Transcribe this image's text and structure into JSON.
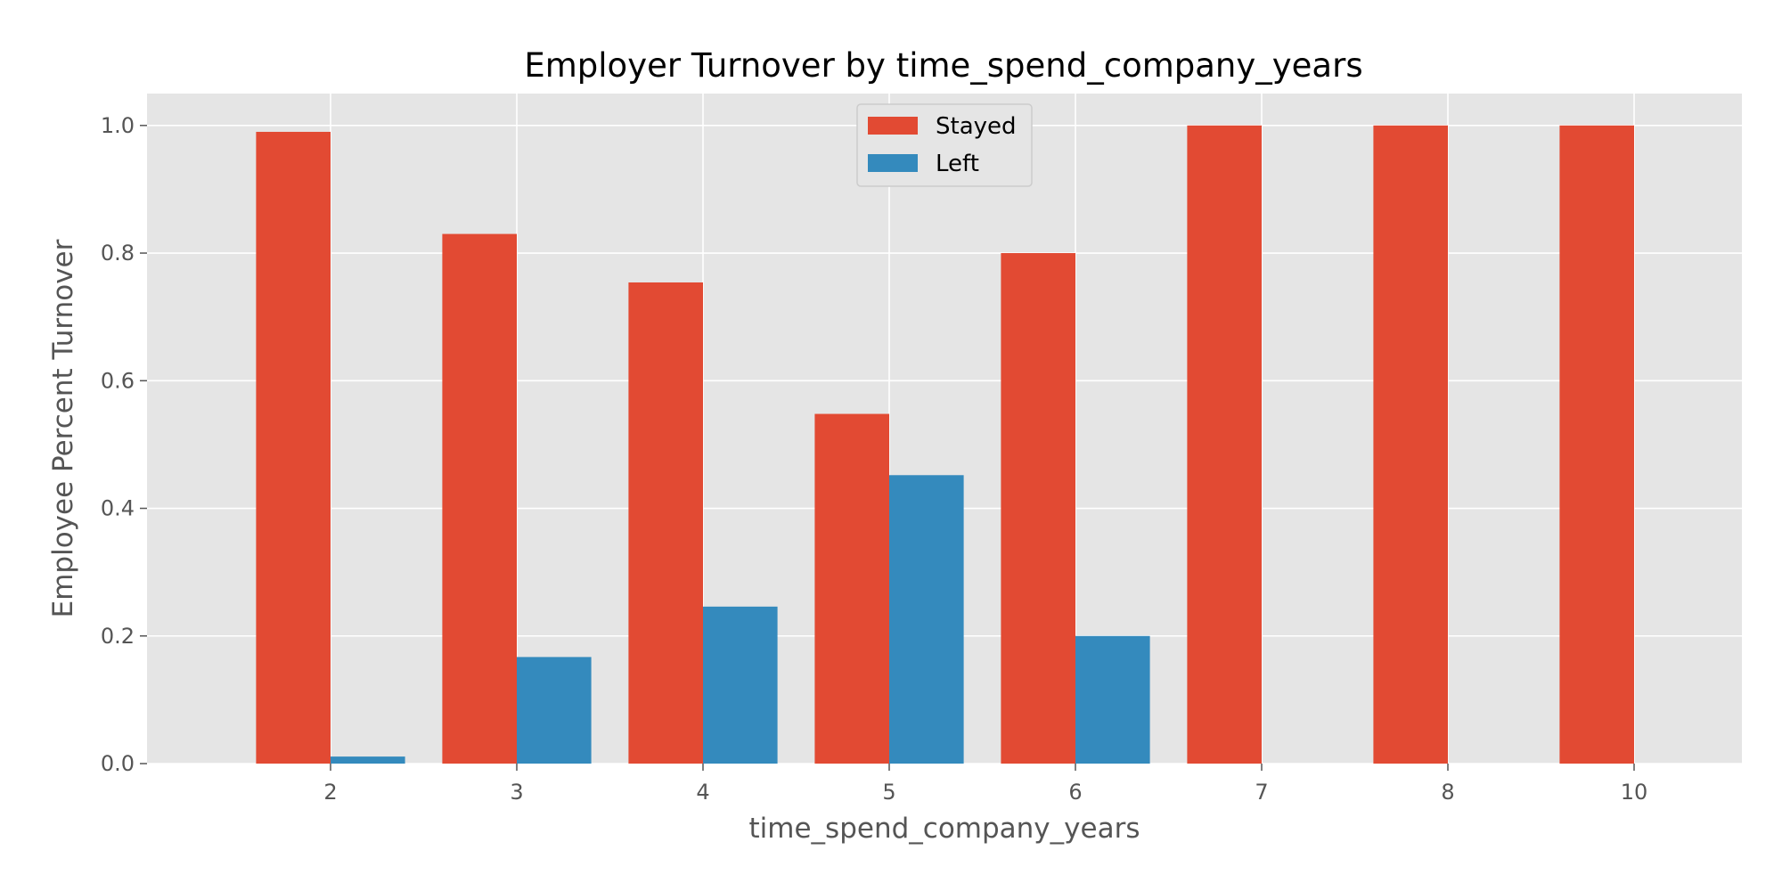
{
  "chart_data": {
    "type": "bar",
    "title": "Employer Turnover by time_spend_company_years",
    "xlabel": "time_spend_company_years",
    "ylabel": "Employee Percent Turnover",
    "categories": [
      "2",
      "3",
      "4",
      "5",
      "6",
      "7",
      "8",
      "10"
    ],
    "series": [
      {
        "name": "Stayed",
        "color": "#E24A33",
        "values": [
          0.99,
          0.83,
          0.754,
          0.548,
          0.8,
          1.0,
          1.0,
          1.0
        ]
      },
      {
        "name": "Left",
        "color": "#348ABD",
        "values": [
          0.011,
          0.167,
          0.246,
          0.452,
          0.2,
          0.0,
          0.0,
          0.0
        ]
      }
    ],
    "ylim": [
      0,
      1.05
    ],
    "yticks": [
      "0.0",
      "0.2",
      "0.4",
      "0.6",
      "0.8",
      "1.0"
    ],
    "grid": true,
    "legend_position": "top-center",
    "plot_background": "#E5E5E5",
    "grid_color": "#FFFFFF"
  }
}
